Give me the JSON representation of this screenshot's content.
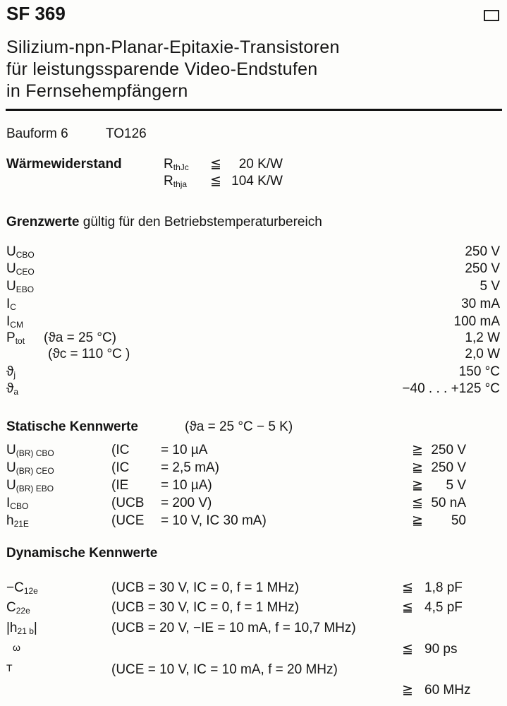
{
  "header": {
    "title": "SF 369",
    "subtitle_lines": [
      "Silizium-npn-Planar-Epitaxie-Transistoren",
      "für leistungssparende Video-Endstufen",
      "in Fernsehempfängern"
    ],
    "checkbox_icon": "empty-square"
  },
  "package": {
    "label": "Bauform 6",
    "type": "TO126"
  },
  "thermal": {
    "label": "Wärmewiderstand",
    "rows": [
      {
        "sym": "R",
        "sub": "thJc",
        "rel": "≦",
        "value": "20 K/W"
      },
      {
        "sym": "R",
        "sub": "thja",
        "rel": "≦",
        "value": "104 K/W"
      }
    ]
  },
  "limits": {
    "heading_bold": "Grenzwerte",
    "heading_rest": "gültig für den Betriebstemperaturbereich",
    "rows": [
      {
        "sym": "U",
        "sub": "CBO",
        "cond": "",
        "value": "250 V"
      },
      {
        "sym": "U",
        "sub": "CEO",
        "cond": "",
        "value": "250 V"
      },
      {
        "sym": "U",
        "sub": "EBO",
        "cond": "",
        "value": "5 V"
      },
      {
        "sym": "I",
        "sub": "C",
        "cond": "",
        "value": "30 mA"
      },
      {
        "sym": "I",
        "sub": "CM",
        "cond": "",
        "value": "100 mA"
      },
      {
        "sym": "P",
        "sub": "tot",
        "cond": "(ϑa = 25 °C)",
        "value": "1,2 W"
      },
      {
        "sym": "",
        "sub": "",
        "cond": "(ϑc = 110 °C )",
        "value": "2,0 W"
      },
      {
        "sym": "ϑ",
        "sub": "j",
        "cond": "",
        "value": "150 °C"
      },
      {
        "sym": "ϑ",
        "sub": "a",
        "cond": "",
        "value": "−40 . . . +125 °C"
      }
    ]
  },
  "static": {
    "heading": "Statische Kennwerte",
    "heading_cond": "(ϑa = 25 °C − 5 K)",
    "rows": [
      {
        "sym": "U",
        "sub": "(BR) CBO",
        "cond_var": "(IC",
        "cond_val": "= 10 µA",
        "rel": "≧",
        "value": "250 V"
      },
      {
        "sym": "U",
        "sub": "(BR) CEO",
        "cond_var": "(IC",
        "cond_val": "= 2,5 mA)",
        "rel": "≧",
        "value": "250 V"
      },
      {
        "sym": "U",
        "sub": "(BR) EBO",
        "cond_var": "(IE",
        "cond_val": "= 10 µA)",
        "rel": "≧",
        "value": "5 V"
      },
      {
        "sym": "I",
        "sub": "CBO",
        "cond_var": "(UCB",
        "cond_val": "= 200 V)",
        "rel": "≦",
        "value": "50 nA"
      },
      {
        "sym": "h",
        "sub": "21E",
        "cond_var": "(UCE",
        "cond_val": "= 10 V, IC 30 mA)",
        "rel": "≧",
        "value": "50"
      }
    ]
  },
  "dynamic": {
    "heading": "Dynamische Kennwerte",
    "rows": [
      {
        "sym": "−C",
        "sub": "12e",
        "cond": "(UCB = 30 V,   IC = 0, f = 1 MHz)",
        "rel": "≦",
        "value": "1,8 pF"
      },
      {
        "sym": "C",
        "sub": "22e",
        "cond": "(UCB = 30 V,   IC = 0, f = 1 MHz)",
        "rel": "≦",
        "value": "4,5 pF"
      },
      {
        "sym": "|h",
        "sub": "21 b",
        "sym_end": "|",
        "cond": "(UCB = 20 V,  −IE = 10 mA, f = 10,7 MHz)",
        "rel": "",
        "value": ""
      },
      {
        "sym": "ω",
        "sub": "",
        "cond": "",
        "rel": "≦",
        "value": "90 ps"
      },
      {
        "sym": "T",
        "sub": "",
        "cond": "(UCE = 10 V, IC = 10 mA, f = 20 MHz)",
        "rel": "",
        "value": ""
      },
      {
        "sym": "",
        "sub": "",
        "cond": "",
        "rel": "≧",
        "value": "60 MHz"
      }
    ]
  }
}
